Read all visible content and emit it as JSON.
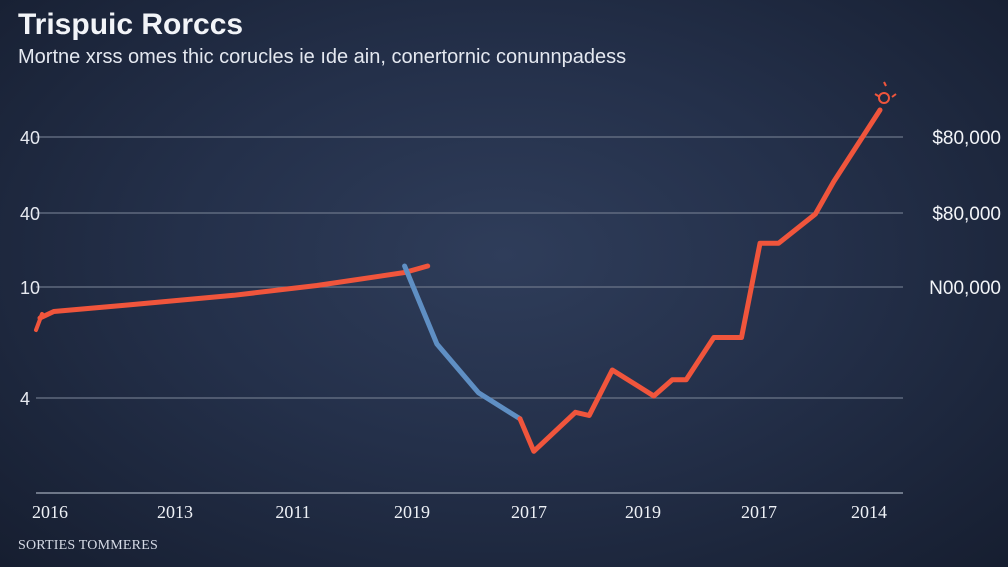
{
  "title": "Trispuic Rorccs",
  "subtitle": "Mortne xrss omes thic corucles ie ıde ain, conertornic conunnpadess",
  "source": "SORTIES TOMMERES",
  "colors": {
    "background": "#24304a",
    "rise_line": "#f0553c",
    "decline_line": "#5f8fc4",
    "grid": "#6b7689",
    "text": "#e8ecf4"
  },
  "chart_data": {
    "type": "line",
    "title": "Trispuic Rorccs",
    "subtitle": "Mortne xrss omes thic corucles ie ıde ain, conertornic conunnpadess",
    "x_tick_labels": [
      "2016",
      "2013",
      "2011",
      "2019",
      "2017",
      "2019",
      "2017",
      "2014"
    ],
    "y_tick_labels_left": [
      "40",
      "40",
      "10",
      "4"
    ],
    "y_tick_labels_right": [
      "$80,000",
      "$80,000",
      "N00,000"
    ],
    "ylim": [
      0,
      100
    ],
    "grid": true,
    "legend": "none",
    "series": [
      {
        "color": "#f0553c",
        "x": [
          0.0,
          0.15,
          0.95,
          2.1,
          3.0,
          3.95,
          4.2
        ],
        "y": [
          56,
          58,
          60,
          63,
          66,
          70,
          72
        ]
      },
      {
        "color": "#5f8fc4",
        "x": [
          3.95,
          4.3,
          4.75,
          5.2
        ],
        "y": [
          72,
          48,
          33,
          25
        ]
      },
      {
        "color": "#f0553c",
        "x": [
          5.2,
          5.35,
          5.8,
          5.95,
          6.2,
          6.65,
          6.85,
          7.0,
          7.3,
          7.6,
          7.8,
          8.0,
          8.4,
          8.6,
          9.1
        ],
        "y": [
          25,
          15,
          27,
          26,
          40,
          32,
          37,
          37,
          50,
          50,
          79,
          79,
          88,
          98,
          120
        ]
      }
    ],
    "annotation_marker": "peak-burst"
  }
}
